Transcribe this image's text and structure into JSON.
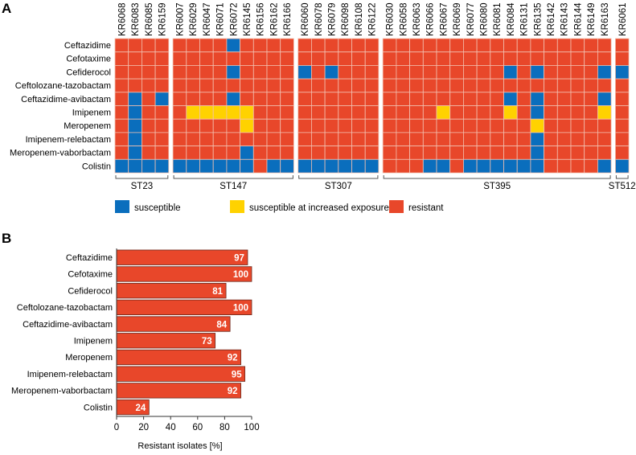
{
  "colors": {
    "S": "#0a6ebd",
    "I": "#ffd200",
    "R": "#e8472a",
    "grid": "#f2c0b0"
  },
  "chart_data": [
    {
      "panel": "A",
      "type": "heatmap",
      "rows": [
        "Ceftazidime",
        "Cefotaxime",
        "Cefiderocol",
        "Ceftolozane-tazobactam",
        "Ceftazidime-avibactam",
        "Imipenem",
        "Meropenem",
        "Imipenem-relebactam",
        "Meropenem-vaborbactam",
        "Colistin"
      ],
      "groups": [
        {
          "name": "ST23",
          "isolates": [
            "KR6068",
            "KR6083",
            "KR6085",
            "KR6159"
          ]
        },
        {
          "name": "ST147",
          "isolates": [
            "KR6007",
            "KR6029",
            "KR6047",
            "KR6071",
            "KR6072",
            "KR6145",
            "KR6156",
            "KR6162",
            "KR6166"
          ]
        },
        {
          "name": "ST307",
          "isolates": [
            "KR6060",
            "KR6078",
            "KR6079",
            "KR6098",
            "KR6108",
            "KR6122"
          ]
        },
        {
          "name": "ST395",
          "isolates": [
            "KR6030",
            "KR6058",
            "KR6063",
            "KR6066",
            "KR6067",
            "KR6069",
            "KR6077",
            "KR6080",
            "KR6081",
            "KR6084",
            "KR6131",
            "KR6135",
            "KR6142",
            "KR6143",
            "KR6144",
            "KR6149",
            "KR6163"
          ]
        },
        {
          "name": "ST512",
          "isolates": [
            "KR6061"
          ]
        }
      ],
      "values": [
        "RRRR RRRRSRRRR RRRRRR RRRRRRRRRRRRRRRRR R",
        "RRRR RRRRRRRRR RRRRRR RRRRRRRRRRRRRRRRR R",
        "RRRR RRRRSRRRR SRSRRR RRRRRRRRRSRSRRRRS S",
        "RRRR RRRRRRRRR RRRRRR RRRRRRRRRRRRRRRRR R",
        "RSRS RRRRSRRRR RRRRRR RRRRRRRRRSRSRRRRS R",
        "RSRR RIIIIIRRR RRRRRR RRRRIRRRRIRSRRRRI R",
        "RSRR RRRRRIRRR RRRRRR RRRRRRRRRRRIRRRRR R",
        "RSRR RRRRRRRRR RRRRRR RRRRRRRRRRRSRRRRR R",
        "RSRR RRRRRSRRR RRRRRR RRRRRRRRRRRSRRRRR R",
        "SSSS SSSSSSRSS SSSSSS RRRSSRSSSSSSRRRRS S"
      ],
      "legend": [
        {
          "code": "S",
          "label": "susceptible"
        },
        {
          "code": "I",
          "label": "susceptible at increased exposure"
        },
        {
          "code": "R",
          "label": "resistant"
        }
      ]
    },
    {
      "panel": "B",
      "type": "bar",
      "orientation": "horizontal",
      "categories": [
        "Ceftazidime",
        "Cefotaxime",
        "Cefiderocol",
        "Ceftolozane-tazobactam",
        "Ceftazidime-avibactam",
        "Imipenem",
        "Meropenem",
        "Imipenem-relebactam",
        "Meropenem-vaborbactam",
        "Colistin"
      ],
      "values": [
        97,
        100,
        81,
        100,
        84,
        73,
        92,
        95,
        92,
        24
      ],
      "xlabel": "Resistant isolates [%]",
      "xlim": [
        0,
        100
      ],
      "xticks": [
        "0",
        "20",
        "40",
        "60",
        "80",
        "100"
      ],
      "bar_color": "#e8472a",
      "grid": false
    }
  ]
}
